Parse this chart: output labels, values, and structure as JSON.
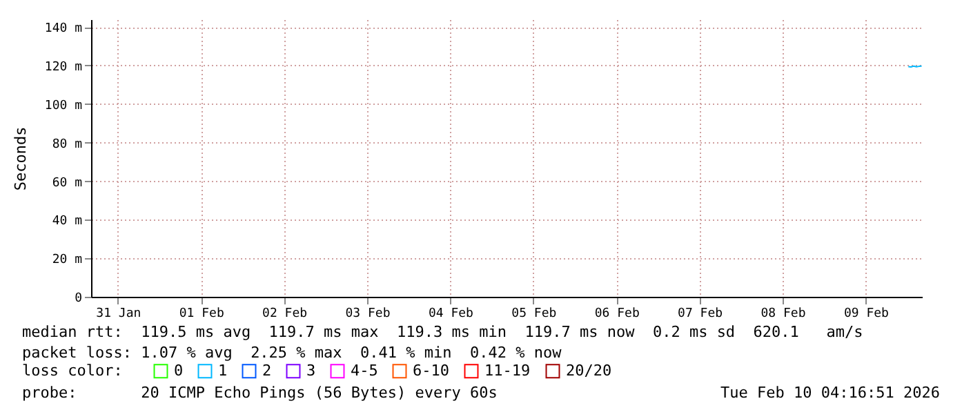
{
  "chart_data": {
    "type": "line",
    "ylabel": "Seconds",
    "legend_title": "loss color:",
    "x": [
      "2026-02-10T00:20",
      "2026-02-10T01:05",
      "2026-02-10T01:50",
      "2026-02-10T02:40",
      "2026-02-10T03:25",
      "2026-02-10T04:10"
    ],
    "series": [
      {
        "name": "0",
        "color": "#26ff00",
        "values": [
          null,
          null,
          null,
          null,
          null,
          null
        ]
      },
      {
        "name": "1",
        "color": "#00b8ff",
        "values": [
          119.5,
          119.3,
          119.7,
          119.4,
          119.6,
          119.7
        ]
      },
      {
        "name": "2",
        "color": "#0059ff",
        "values": [
          null,
          null,
          null,
          null,
          null,
          null
        ]
      },
      {
        "name": "3",
        "color": "#7e00ff",
        "values": [
          null,
          null,
          null,
          null,
          null,
          null
        ]
      },
      {
        "name": "4-5",
        "color": "#ff00ff",
        "values": [
          null,
          null,
          null,
          null,
          null,
          null
        ]
      },
      {
        "name": "6-10",
        "color": "#ff5500",
        "values": [
          null,
          null,
          null,
          null,
          null,
          null
        ]
      },
      {
        "name": "11-19",
        "color": "#ff0000",
        "values": [
          null,
          null,
          null,
          null,
          null,
          null
        ]
      },
      {
        "name": "20/20",
        "color": "#a10000",
        "values": [
          null,
          null,
          null,
          null,
          null,
          null
        ]
      }
    ],
    "xlim": [
      "2026-01-31T04:16",
      "2026-02-10T04:16"
    ],
    "xticks": [
      {
        "value": "2026-01-31T12:00",
        "label": "31 Jan"
      },
      {
        "value": "2026-02-01T12:00",
        "label": "01 Feb"
      },
      {
        "value": "2026-02-02T12:00",
        "label": "02 Feb"
      },
      {
        "value": "2026-02-03T12:00",
        "label": "03 Feb"
      },
      {
        "value": "2026-02-04T12:00",
        "label": "04 Feb"
      },
      {
        "value": "2026-02-05T12:00",
        "label": "05 Feb"
      },
      {
        "value": "2026-02-06T12:00",
        "label": "06 Feb"
      },
      {
        "value": "2026-02-07T12:00",
        "label": "07 Feb"
      },
      {
        "value": "2026-02-08T12:00",
        "label": "08 Feb"
      },
      {
        "value": "2026-02-09T12:00",
        "label": "09 Feb"
      }
    ],
    "ylim": [
      0,
      144
    ],
    "yticks": [
      0,
      {
        "value": 20,
        "label": "20 m"
      },
      {
        "value": 40,
        "label": "40 m"
      },
      {
        "value": 60,
        "label": "60 m"
      },
      {
        "value": 80,
        "label": "80 m"
      },
      {
        "value": 100,
        "label": "100 m"
      },
      {
        "value": 120,
        "label": "120 m"
      },
      {
        "value": 140,
        "label": "140 m"
      }
    ],
    "grid": true,
    "legend": "bottom",
    "line_style": "solid",
    "marker": "none",
    "annotations": [
      "median rtt:  119.5 ms avg  119.7 ms max  119.3 ms min  119.7 ms now  0.2 ms sd  620.1   am/s",
      "packet loss: 1.07 % avg  2.25 % max  0.41 % min  0.42 % now",
      "probe:       20 ICMP Echo Pings (56 Bytes) every 60s",
      "Tue Feb 10 04:16:51 2026"
    ]
  }
}
